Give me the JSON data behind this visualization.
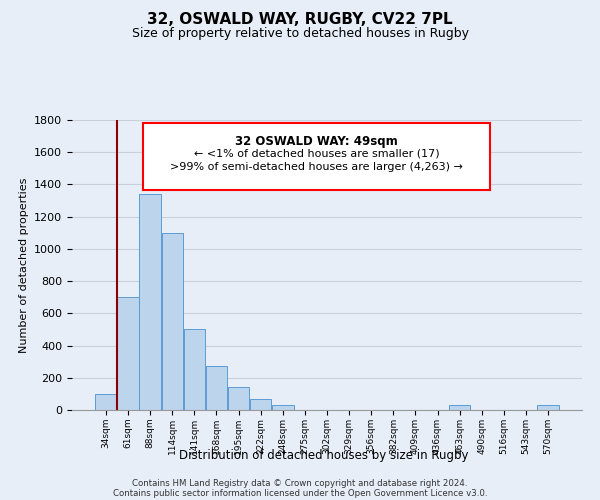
{
  "title": "32, OSWALD WAY, RUGBY, CV22 7PL",
  "subtitle": "Size of property relative to detached houses in Rugby",
  "xlabel": "Distribution of detached houses by size in Rugby",
  "ylabel": "Number of detached properties",
  "footer_lines": [
    "Contains HM Land Registry data © Crown copyright and database right 2024.",
    "Contains public sector information licensed under the Open Government Licence v3.0."
  ],
  "annotation_title": "32 OSWALD WAY: 49sqm",
  "annotation_line1": "← <1% of detached houses are smaller (17)",
  "annotation_line2": ">99% of semi-detached houses are larger (4,263) →",
  "bar_categories": [
    "34sqm",
    "61sqm",
    "88sqm",
    "114sqm",
    "141sqm",
    "168sqm",
    "195sqm",
    "222sqm",
    "248sqm",
    "275sqm",
    "302sqm",
    "329sqm",
    "356sqm",
    "382sqm",
    "409sqm",
    "436sqm",
    "463sqm",
    "490sqm",
    "516sqm",
    "543sqm",
    "570sqm"
  ],
  "bar_values": [
    100,
    700,
    1340,
    1100,
    500,
    275,
    140,
    70,
    30,
    0,
    0,
    0,
    0,
    0,
    0,
    0,
    30,
    0,
    0,
    0,
    30
  ],
  "bar_color": "#bdd4ed",
  "bar_edge_color": "#5b9bd5",
  "ylim": [
    0,
    1800
  ],
  "yticks": [
    0,
    200,
    400,
    600,
    800,
    1000,
    1200,
    1400,
    1600,
    1800
  ],
  "bg_color": "#e8eef8",
  "grid_color": "#c8d0dc"
}
